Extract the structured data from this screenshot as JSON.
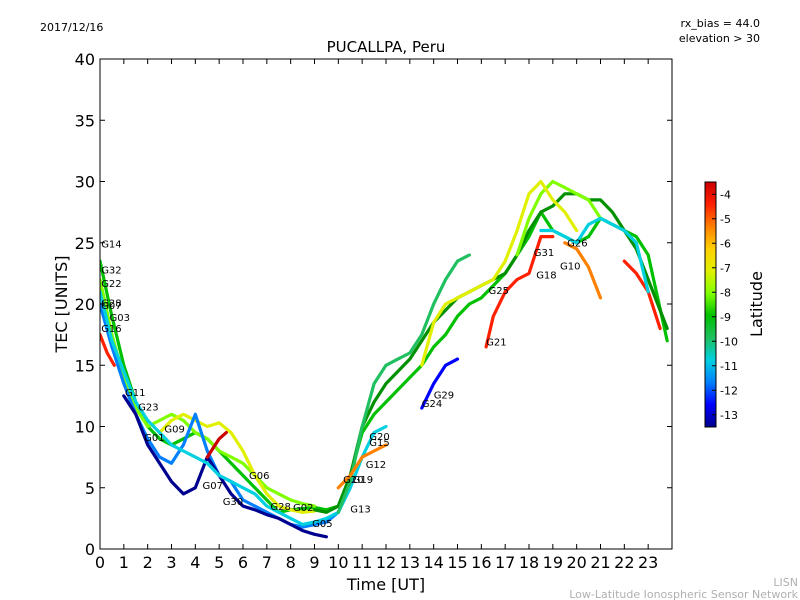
{
  "header": {
    "date": "2017/12/16",
    "bias": "rx_bias = 44.0",
    "elevation": "elevation > 30"
  },
  "footer": {
    "line1": "LISN",
    "line2": "Low-Latitude Ionospheric Sensor Network"
  },
  "chart_data": {
    "type": "scatter",
    "title": "PUCALLPA, Peru",
    "xlabel": "Time [UT]",
    "ylabel": "TEC [UNITS]",
    "xlim": [
      0,
      24
    ],
    "ylim": [
      0,
      40
    ],
    "x_ticks": [
      "0",
      "1",
      "2",
      "3",
      "4",
      "5",
      "6",
      "7",
      "8",
      "9",
      "10",
      "11",
      "12",
      "13",
      "14",
      "15",
      "16",
      "17",
      "18",
      "19",
      "20",
      "21",
      "22",
      "23"
    ],
    "y_ticks": [
      "0",
      "5",
      "10",
      "15",
      "20",
      "25",
      "30",
      "35",
      "40"
    ],
    "colorbar": {
      "label": "Latitude",
      "range": [
        -13.5,
        -3.5
      ],
      "ticks": [
        "-4",
        "-5",
        "-6",
        "-7",
        "-8",
        "-9",
        "-10",
        "-11",
        "-12",
        "-13"
      ],
      "colors": [
        "#00008f",
        "#0000ff",
        "#0080ff",
        "#00d0e0",
        "#20c060",
        "#00c000",
        "#80ff00",
        "#e0f000",
        "#ffd000",
        "#ff8000",
        "#ff2000",
        "#cc0000"
      ]
    },
    "satellite_labels": [
      {
        "name": "G14",
        "x": 0.05,
        "y": 24.6
      },
      {
        "name": "G32",
        "x": 0.05,
        "y": 22.5
      },
      {
        "name": "G22",
        "x": 0.05,
        "y": 21.4
      },
      {
        "name": "G28",
        "x": 0.05,
        "y": 19.8
      },
      {
        "name": "G07",
        "x": 0.05,
        "y": 19.6
      },
      {
        "name": "G03",
        "x": 0.4,
        "y": 18.6
      },
      {
        "name": "G16",
        "x": 0.05,
        "y": 17.7
      },
      {
        "name": "G11",
        "x": 1.05,
        "y": 12.5
      },
      {
        "name": "G23",
        "x": 1.6,
        "y": 11.3
      },
      {
        "name": "G09",
        "x": 2.7,
        "y": 9.5
      },
      {
        "name": "G01",
        "x": 1.85,
        "y": 8.8
      },
      {
        "name": "G07",
        "x": 4.3,
        "y": 4.9
      },
      {
        "name": "G30",
        "x": 5.15,
        "y": 3.6
      },
      {
        "name": "G06",
        "x": 6.25,
        "y": 5.7
      },
      {
        "name": "G28",
        "x": 7.15,
        "y": 3.2
      },
      {
        "name": "G02",
        "x": 8.1,
        "y": 3.1
      },
      {
        "name": "G05",
        "x": 8.9,
        "y": 1.8
      },
      {
        "name": "G13",
        "x": 10.5,
        "y": 3.0
      },
      {
        "name": "G20",
        "x": 10.2,
        "y": 5.4
      },
      {
        "name": "G19",
        "x": 10.6,
        "y": 5.4
      },
      {
        "name": "G12",
        "x": 11.15,
        "y": 6.6
      },
      {
        "name": "G15",
        "x": 11.3,
        "y": 8.4
      },
      {
        "name": "G20",
        "x": 11.3,
        "y": 8.9
      },
      {
        "name": "G24",
        "x": 13.5,
        "y": 11.6
      },
      {
        "name": "G29",
        "x": 14.0,
        "y": 12.3
      },
      {
        "name": "G21",
        "x": 16.2,
        "y": 16.6
      },
      {
        "name": "G25",
        "x": 16.3,
        "y": 20.8
      },
      {
        "name": "G18",
        "x": 18.3,
        "y": 22.1
      },
      {
        "name": "G31",
        "x": 18.2,
        "y": 23.9
      },
      {
        "name": "G10",
        "x": 19.3,
        "y": 22.8
      },
      {
        "name": "G26",
        "x": 19.6,
        "y": 24.7
      }
    ],
    "series": [
      {
        "name": "arc-green-main",
        "color": "#00c000",
        "x": [
          0,
          0.5,
          1,
          1.5,
          2,
          2.5,
          3,
          3.5,
          4,
          4.5,
          5,
          5.5,
          6,
          6.5,
          7,
          7.5,
          8,
          8.5,
          9,
          9.5,
          10,
          10.5,
          11,
          11.5,
          12,
          12.5,
          13,
          13.5,
          14,
          14.5,
          15,
          15.5,
          16,
          16.5,
          17,
          17.5,
          18,
          18.5,
          19,
          19.5,
          20,
          20.5,
          21,
          21.5,
          22,
          22.5,
          23,
          23.8
        ],
        "y": [
          23.5,
          19,
          15,
          12,
          10,
          9,
          8.5,
          9,
          9.5,
          9,
          8,
          7,
          6,
          5,
          4,
          3,
          3.2,
          3.3,
          3.4,
          3.2,
          3.5,
          6,
          9.5,
          11,
          12,
          13,
          14,
          15,
          16.5,
          17.5,
          19,
          20,
          20.5,
          21.5,
          22.5,
          24,
          25.5,
          27.5,
          26,
          25.5,
          25,
          25.5,
          27,
          26.5,
          26,
          25.5,
          24,
          17
        ]
      },
      {
        "name": "arc-lime",
        "color": "#80ff00",
        "x": [
          0,
          0.5,
          1,
          1.5,
          2,
          2.5,
          3,
          3.5,
          4,
          4.5,
          5,
          5.5,
          6,
          6.5,
          7,
          7.5,
          8,
          8.5,
          9
        ],
        "y": [
          22,
          17.5,
          14,
          11.5,
          10,
          10.5,
          11,
          10.5,
          9.5,
          9,
          8,
          7.5,
          7,
          6,
          5,
          4.5,
          4,
          3.7,
          3.5
        ]
      },
      {
        "name": "arc-yellow",
        "color": "#e0f000",
        "x": [
          2.5,
          3,
          3.5,
          4,
          4.5,
          5,
          5.5,
          6,
          6.5,
          7,
          7.5,
          8,
          8.5,
          9
        ],
        "y": [
          9.5,
          10.5,
          11,
          10.5,
          10,
          10.3,
          9.5,
          8,
          6,
          4.5,
          3.5,
          3.2,
          3,
          3.1
        ]
      },
      {
        "name": "arc-blue",
        "color": "#0080ff",
        "x": [
          0,
          0.5,
          1,
          1.5,
          2,
          2.5,
          3,
          3.5,
          4,
          4.5,
          5,
          5.5,
          6,
          6.5,
          7,
          7.5,
          8,
          8.5,
          9,
          9.5,
          10
        ],
        "y": [
          20,
          16.5,
          13.5,
          11,
          9,
          7.5,
          7,
          8.5,
          11,
          8,
          6,
          5.5,
          4,
          3.5,
          3,
          2.5,
          2,
          1.8,
          2,
          2.2,
          3
        ]
      },
      {
        "name": "arc-navy",
        "color": "#00008f",
        "x": [
          1,
          1.5,
          2,
          2.5,
          3,
          3.5,
          4,
          4.5,
          5,
          5.5,
          6,
          6.5,
          7,
          7.5,
          8,
          8.5,
          9,
          9.5
        ],
        "y": [
          12.5,
          11,
          8.5,
          7,
          5.5,
          4.5,
          5,
          7.5,
          6,
          4.5,
          3.5,
          3.2,
          2.8,
          2.5,
          2,
          1.5,
          1.2,
          1
        ]
      },
      {
        "name": "arc-teal",
        "color": "#00d0e0",
        "x": [
          0,
          0.5,
          1,
          1.5,
          2,
          2.5,
          3,
          3.5,
          4,
          4.5,
          5,
          5.5,
          6,
          6.5,
          7,
          7.5,
          8,
          8.5,
          9,
          9.5,
          10,
          10.5,
          11,
          11.5,
          12
        ],
        "y": [
          21,
          17,
          14.5,
          12,
          10.5,
          9.5,
          8.5,
          8,
          7.5,
          7,
          6,
          5.5,
          5,
          4.5,
          3.5,
          3,
          2.5,
          2,
          2.2,
          2.5,
          3,
          5,
          7.5,
          9.5,
          10
        ]
      },
      {
        "name": "arc-darkgreen",
        "color": "#009000",
        "x": [
          9,
          9.5,
          10,
          10.5,
          11,
          11.5,
          12,
          12.5,
          13,
          13.5,
          14,
          14.5,
          15,
          15.5,
          16,
          16.5,
          17,
          17.5,
          18,
          18.5,
          19,
          19.5,
          20,
          20.5,
          21,
          21.5,
          22,
          22.5,
          23,
          23.8
        ],
        "y": [
          3.2,
          3,
          3.5,
          6,
          10,
          12,
          13.5,
          14.5,
          15.5,
          17,
          18.5,
          19.5,
          20.5,
          21,
          21.5,
          22,
          22.5,
          24,
          26,
          27.5,
          28,
          29,
          29,
          28.5,
          28.5,
          27.5,
          26,
          24.5,
          22,
          18
        ]
      },
      {
        "name": "arc-green2",
        "color": "#20c060",
        "x": [
          10,
          10.5,
          11,
          11.5,
          12,
          12.5,
          13,
          13.5,
          14,
          14.5,
          15,
          15.5
        ],
        "y": [
          3,
          5.5,
          10,
          13.5,
          15,
          15.5,
          16,
          17.5,
          20,
          22,
          23.5,
          24
        ]
      },
      {
        "name": "arc-lime2",
        "color": "#80ff00",
        "x": [
          17.5,
          18,
          18.5,
          19,
          19.5,
          20,
          20.5,
          21
        ],
        "y": [
          24,
          27,
          29,
          30,
          29.5,
          29,
          28.5,
          27
        ]
      },
      {
        "name": "arc-yellow2",
        "color": "#e0f000",
        "x": [
          13.5,
          14,
          14.5,
          15,
          15.5,
          16,
          16.5,
          17,
          17.5,
          18,
          18.5,
          19,
          19.5,
          20
        ],
        "y": [
          15,
          18.5,
          20,
          20.5,
          21,
          21.5,
          22,
          23.5,
          26,
          29,
          30,
          28.5,
          27.5,
          26
        ]
      },
      {
        "name": "arc-orange",
        "color": "#ff8000",
        "x": [
          19.5,
          20,
          20.5,
          21
        ],
        "y": [
          25,
          24.5,
          23,
          20.5
        ]
      },
      {
        "name": "arc-red",
        "color": "#ff2000",
        "x": [
          0,
          0.3,
          0.6
        ],
        "y": [
          17.5,
          16,
          15
        ]
      },
      {
        "name": "arc-red2",
        "color": "#ff2000",
        "x": [
          16.2,
          16.5,
          17,
          17.5,
          18,
          18.5,
          19
        ],
        "y": [
          16.5,
          19,
          21,
          22,
          22.5,
          25.5,
          25.5
        ]
      },
      {
        "name": "arc-red3",
        "color": "#cc0000",
        "x": [
          4.5,
          5,
          5.3
        ],
        "y": [
          7.5,
          9,
          9.5
        ]
      },
      {
        "name": "arc-red4",
        "color": "#ff2000",
        "x": [
          22,
          22.5,
          23,
          23.5
        ],
        "y": [
          23.5,
          22.5,
          21,
          18
        ]
      },
      {
        "name": "arc-orange2",
        "color": "#ff8000",
        "x": [
          10,
          10.5,
          11,
          11.5,
          12
        ],
        "y": [
          5,
          6,
          7.5,
          8,
          8.5
        ]
      },
      {
        "name": "arc-blue2",
        "color": "#0000ff",
        "x": [
          13.5,
          14,
          14.5,
          15
        ],
        "y": [
          11.5,
          13.5,
          15,
          15.5
        ]
      },
      {
        "name": "arc-teal2",
        "color": "#00d0e0",
        "x": [
          18.5,
          19,
          19.5,
          20,
          20.5,
          21,
          21.5,
          22,
          22.5,
          23
        ],
        "y": [
          26,
          26,
          25.5,
          25,
          26.5,
          27,
          26.5,
          26,
          25,
          21
        ]
      }
    ]
  }
}
